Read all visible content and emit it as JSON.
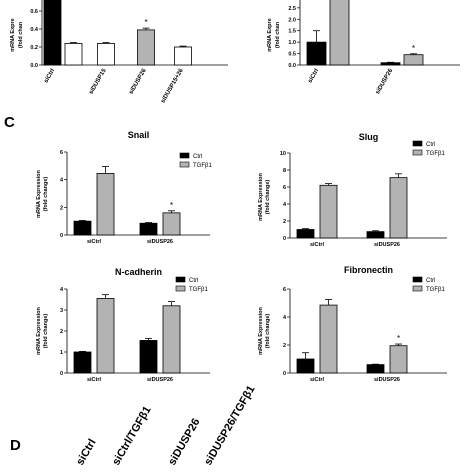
{
  "panel_labels": {
    "c": "C",
    "d": "D"
  },
  "colors": {
    "ctrl": "#000000",
    "tgf": "#b3b3b3",
    "bar_white": "#ffffff"
  },
  "chart_data": [
    {
      "id": "top-left",
      "type": "bar",
      "title": "",
      "ylabel_lines": [
        "mRNA Expre",
        "(fold chan"
      ],
      "categories": [
        "siCtrl",
        "siDUSP15",
        "siDUSP26",
        "siDUSP15+26"
      ],
      "pairs": [
        [
          "black",
          "white"
        ],
        [
          "white"
        ],
        [
          "gray"
        ],
        [
          "white"
        ]
      ],
      "values": [
        [
          1.0,
          0.24
        ],
        [
          0.24
        ],
        [
          0.39
        ],
        [
          0.2
        ]
      ],
      "errors": [
        [
          0.0,
          0.01
        ],
        [
          0.01
        ],
        [
          0.02
        ],
        [
          0.01
        ]
      ],
      "stars": [
        [
          false,
          false
        ],
        [
          false
        ],
        [
          true
        ],
        [
          false
        ]
      ],
      "ylim": [
        0,
        1.0
      ],
      "yticks": [
        "0.0",
        "0.2",
        "0.4",
        "0.6",
        "0.8",
        "1.0"
      ],
      "yticks_values": [
        0,
        0.2,
        0.4,
        0.6,
        0.8,
        1.0
      ]
    },
    {
      "id": "top-right",
      "type": "bar",
      "title": "",
      "ylabel_lines": [
        "mRNA Expre",
        "(fold chan"
      ],
      "categories": [
        "siCtrl",
        "siDUSP26"
      ],
      "pairs": [
        [
          "black",
          "gray"
        ],
        [
          "black",
          "gray"
        ]
      ],
      "values": [
        [
          1.0,
          3.6
        ],
        [
          0.1,
          0.45
        ]
      ],
      "errors": [
        [
          0.5,
          0.0
        ],
        [
          0.02,
          0.04
        ]
      ],
      "stars": [
        [
          false,
          false
        ],
        [
          false,
          true
        ]
      ],
      "ylim": [
        0,
        3.5
      ],
      "yticks": [
        "0.0",
        "0.5",
        "1.0",
        "1.5",
        "2.0",
        "2.5",
        "3.0",
        "3.5"
      ],
      "yticks_values": [
        0,
        0.5,
        1.0,
        1.5,
        2.0,
        2.5,
        3.0,
        3.5
      ]
    },
    {
      "id": "snail",
      "type": "bar",
      "title": "Snail",
      "ylabel_lines": [
        "mRNA Expression",
        "(fold change)"
      ],
      "categories": [
        "siCtrl",
        "siDUSP26"
      ],
      "series": [
        {
          "name": "Ctrl",
          "values": [
            1.0,
            0.85
          ]
        },
        {
          "name": "TGFβ1",
          "values": [
            4.45,
            1.6
          ]
        }
      ],
      "errors": [
        [
          0.05,
          0.05
        ],
        [
          0.5,
          0.15
        ]
      ],
      "stars": [
        [
          false,
          false
        ],
        [
          false,
          true
        ]
      ],
      "ylim": [
        0,
        6
      ],
      "yticks": [
        "0",
        "2",
        "4",
        "6"
      ],
      "yticks_values": [
        0,
        2,
        4,
        6
      ],
      "legend": false
    },
    {
      "id": "slug",
      "type": "bar",
      "title": "Slug",
      "ylabel_lines": [
        "mRNA Expression",
        "(fold change)"
      ],
      "categories": [
        "siCtrl",
        "siDUSP26"
      ],
      "series": [
        {
          "name": "Ctrl",
          "values": [
            1.0,
            0.75
          ]
        },
        {
          "name": "TGFβ1",
          "values": [
            6.2,
            7.1
          ]
        }
      ],
      "errors": [
        [
          0.1,
          0.1
        ],
        [
          0.2,
          0.45
        ]
      ],
      "stars": [
        [
          false,
          false
        ],
        [
          false,
          false
        ]
      ],
      "ylim": [
        0,
        10
      ],
      "yticks": [
        "0",
        "2",
        "4",
        "6",
        "8",
        "10"
      ],
      "yticks_values": [
        0,
        2,
        4,
        6,
        8,
        10
      ],
      "legend": true
    },
    {
      "id": "ncadherin",
      "type": "bar",
      "title": "N-cadherin",
      "ylabel_lines": [
        "mRNA Expression",
        "(fold change)"
      ],
      "categories": [
        "siCtrl",
        "siDUSP26"
      ],
      "series": [
        {
          "name": "Ctrl",
          "values": [
            1.0,
            1.55
          ]
        },
        {
          "name": "TGFβ1",
          "values": [
            3.55,
            3.2
          ]
        }
      ],
      "errors": [
        [
          0.03,
          0.1
        ],
        [
          0.18,
          0.2
        ]
      ],
      "stars": [
        [
          false,
          false
        ],
        [
          false,
          false
        ]
      ],
      "ylim": [
        0,
        4
      ],
      "yticks": [
        "0",
        "1",
        "2",
        "3",
        "4"
      ],
      "yticks_values": [
        0,
        1,
        2,
        3,
        4
      ],
      "legend": true
    },
    {
      "id": "fibronectin",
      "type": "bar",
      "title": "Fibronectin",
      "ylabel_lines": [
        "mRNA Expression",
        "(fold change)"
      ],
      "categories": [
        "siCtrl",
        "siDUSP26"
      ],
      "series": [
        {
          "name": "Ctrl",
          "values": [
            1.0,
            0.6
          ]
        },
        {
          "name": "TGFβ1",
          "values": [
            4.85,
            1.95
          ]
        }
      ],
      "errors": [
        [
          0.45,
          0.03
        ],
        [
          0.4,
          0.12
        ]
      ],
      "stars": [
        [
          false,
          false
        ],
        [
          false,
          true
        ]
      ],
      "ylim": [
        0,
        6
      ],
      "yticks": [
        "0",
        "2",
        "4",
        "6"
      ],
      "yticks_values": [
        0,
        2,
        4,
        6
      ],
      "legend": true
    }
  ],
  "legend_labels": {
    "ctrl": "Ctrl",
    "tgf": "TGFβ1"
  },
  "star": "*",
  "blot_lanes": [
    "siCtrl",
    "siCtrl/TGFβ1",
    "siDUSP26",
    "siDUSP26/TGFβ1"
  ]
}
